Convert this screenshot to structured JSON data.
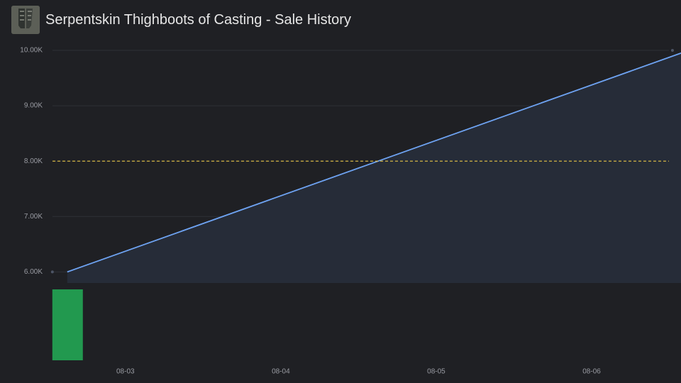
{
  "chart_data": {
    "type": "line",
    "title": "Serpentskin Thighboots of Casting - Sale History",
    "series": [
      {
        "color": "#6ea3f2",
        "x": [
          2.626,
          6.575
        ],
        "values": [
          6000,
          9950
        ]
      }
    ],
    "points": {
      "color": "#4d5566",
      "x": [
        2.53,
        6.52
      ],
      "values": [
        6000,
        10000
      ]
    },
    "reference_line": {
      "value": 8000,
      "color": "#e8c547"
    },
    "volume": {
      "color": "#22994f",
      "x": [
        2.628
      ],
      "values": [
        1
      ],
      "ylim": [
        0,
        1
      ]
    },
    "area_color": "#262c38",
    "grid": true,
    "xlim": [
      2.33,
      6.575
    ],
    "xticks": [
      {
        "value": 3,
        "label": "08-03"
      },
      {
        "value": 4,
        "label": "08-04"
      },
      {
        "value": 5,
        "label": "08-05"
      },
      {
        "value": 6,
        "label": "08-06"
      }
    ],
    "ylim": [
      5800,
      10000
    ],
    "yticks": [
      {
        "value": 6000,
        "label": "6.00K"
      },
      {
        "value": 7000,
        "label": "7.00K"
      },
      {
        "value": 8000,
        "label": "8.00K"
      },
      {
        "value": 9000,
        "label": "9.00K"
      },
      {
        "value": 10000,
        "label": "10.00K"
      }
    ]
  }
}
